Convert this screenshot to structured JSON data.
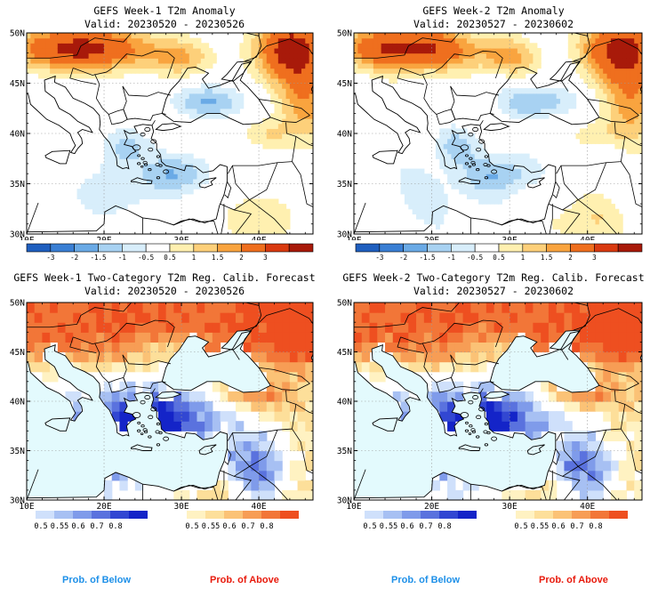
{
  "panels": [
    {
      "title": "GEFS Week-1 T2m Anomaly",
      "valid": "Valid: 20230520 - 20230526",
      "type": "anomaly",
      "week": 1
    },
    {
      "title": "GEFS Week-2 T2m Anomaly",
      "valid": "Valid: 20230527 - 20230602",
      "type": "anomaly",
      "week": 2
    },
    {
      "title": "GEFS Week-1 Two-Category T2m Reg. Calib. Forecast",
      "valid": "Valid: 20230520 - 20230526",
      "type": "prob",
      "week": 1
    },
    {
      "title": "GEFS Week-2 Two-Category T2m Reg. Calib. Forecast",
      "valid": "Valid: 20230527 - 20230602",
      "type": "prob",
      "week": 2
    }
  ],
  "axes": {
    "lat_labels": [
      "50N",
      "45N",
      "40N",
      "35N",
      "30N"
    ],
    "lon_labels": [
      "10E",
      "20E",
      "30E",
      "40E"
    ]
  },
  "anomaly_legend": {
    "labels": [
      "-3",
      "-2",
      "-1.5",
      "-1",
      "-0.5",
      "0.5",
      "1",
      "1.5",
      "2",
      "3"
    ],
    "colors": [
      "#1f5fbf",
      "#3a7fd4",
      "#6aaae6",
      "#a8d2f2",
      "#d8eefb",
      "#ffffff",
      "#fff0b0",
      "#fdd07a",
      "#f9a43f",
      "#ef6f1e",
      "#d93a10",
      "#a81a0a"
    ]
  },
  "prob_legend": {
    "below_labels": [
      "0.5",
      "0.55",
      "0.6",
      "0.7",
      "0.8"
    ],
    "below_colors": [
      "#cfe0fb",
      "#a7c0f3",
      "#7f9bea",
      "#5a72de",
      "#3247d2",
      "#1424c8"
    ],
    "above_labels": [
      "0.5",
      "0.55",
      "0.6",
      "0.7",
      "0.8"
    ],
    "above_colors": [
      "#fff2c2",
      "#fddf9a",
      "#fbc276",
      "#f79d55",
      "#f27638",
      "#ee4f20"
    ]
  },
  "footer": {
    "below": "Prob. of Below",
    "above": "Prob. of Above",
    "below_color": "#1e90e8",
    "above_color": "#e81a0c"
  },
  "sea_color": "#e3fafd"
}
